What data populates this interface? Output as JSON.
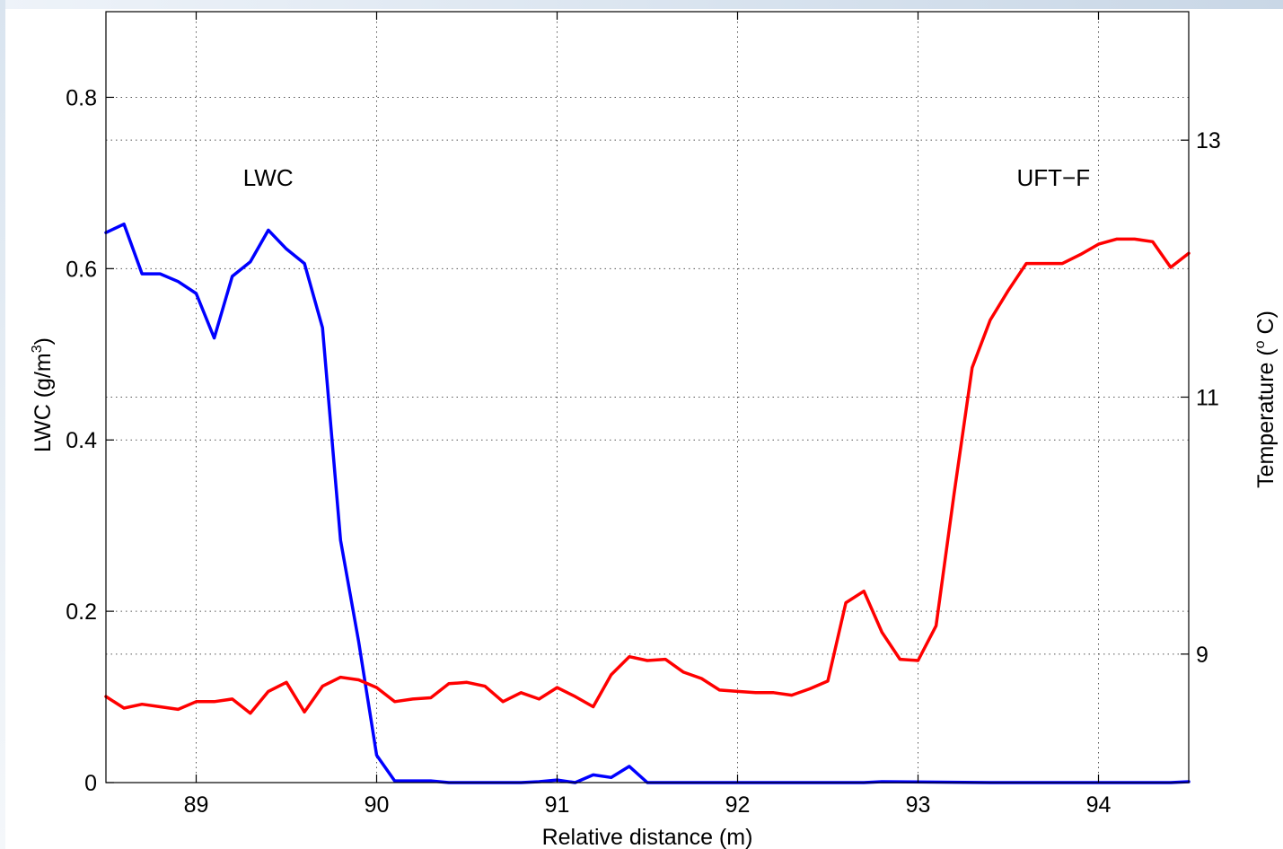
{
  "chart_data": {
    "type": "line",
    "xlabel": "Relative distance (m)",
    "ylabel": "LWC (g/m",
    "ylabel_sup": "3",
    "ylabel_tail": ")",
    "y2label": "Temperature (",
    "y2label_sup": "o",
    "y2label_tail": " C)",
    "xlim": [
      88.5,
      94.5
    ],
    "ylim": [
      0,
      0.9
    ],
    "y2lim": [
      8.0,
      14.0
    ],
    "xticks": [
      89,
      90,
      91,
      92,
      93,
      94
    ],
    "xtick_labels": [
      "89",
      "90",
      "91",
      "92",
      "93",
      "94"
    ],
    "yticks": [
      0,
      0.2,
      0.4,
      0.6,
      0.8
    ],
    "ytick_labels": [
      "0",
      "0.2",
      "0.4",
      "0.6",
      "0.8"
    ],
    "y2ticks": [
      9,
      11,
      13
    ],
    "y2tick_labels": [
      "9",
      "11",
      "13"
    ],
    "grid": true,
    "annotations": [
      {
        "text": "LWC",
        "x": 89.2,
        "y": 0.7
      },
      {
        "text": "UFT−F",
        "x": 93.8,
        "y": 0.7
      }
    ],
    "series": [
      {
        "key": "lwc",
        "color": "#0000ff",
        "axis": "left",
        "x": [
          88.5,
          88.6,
          88.7,
          88.8,
          88.9,
          89.0,
          89.1,
          89.2,
          89.3,
          89.4,
          89.5,
          89.6,
          89.7,
          89.8,
          89.9,
          90.0,
          90.1,
          90.2,
          90.3,
          90.4,
          90.7,
          90.8,
          90.9,
          91.0,
          91.1,
          91.2,
          91.3,
          91.4,
          91.5,
          91.9,
          92.1,
          92.4,
          92.7,
          92.8,
          93.4,
          93.9,
          94.1,
          94.4,
          94.5
        ],
        "y": [
          0.642,
          0.652,
          0.594,
          0.594,
          0.585,
          0.571,
          0.519,
          0.591,
          0.608,
          0.645,
          0.623,
          0.606,
          0.531,
          0.283,
          0.165,
          0.032,
          0.002,
          0.002,
          0.002,
          0.0,
          0.0,
          0.0,
          0.001,
          0.003,
          0.0,
          0.009,
          0.006,
          0.019,
          0.0,
          0.0,
          0.0,
          0.0,
          0.0,
          0.001,
          0.0,
          0.0,
          0.0,
          0.0,
          0.001
        ]
      },
      {
        "key": "temperature",
        "color": "#ff0000",
        "axis": "right",
        "x": [
          88.5,
          88.6,
          88.7,
          88.8,
          88.9,
          89.0,
          89.1,
          89.2,
          89.3,
          89.4,
          89.5,
          89.6,
          89.7,
          89.8,
          89.9,
          90.0,
          90.1,
          90.2,
          90.3,
          90.4,
          90.5,
          90.6,
          90.7,
          90.8,
          90.9,
          91.0,
          91.1,
          91.2,
          91.3,
          91.4,
          91.5,
          91.6,
          91.7,
          91.8,
          91.9,
          92.0,
          92.1,
          92.2,
          92.3,
          92.4,
          92.5,
          92.6,
          92.7,
          92.8,
          92.9,
          93.0,
          93.1,
          93.2,
          93.3,
          93.4,
          93.5,
          93.6,
          93.7,
          93.8,
          93.9,
          94.0,
          94.1,
          94.2,
          94.3,
          94.4,
          94.5
        ],
        "y": [
          8.67,
          8.58,
          8.61,
          8.59,
          8.57,
          8.63,
          8.63,
          8.65,
          8.54,
          8.71,
          8.78,
          8.55,
          8.75,
          8.82,
          8.8,
          8.74,
          8.63,
          8.65,
          8.66,
          8.77,
          8.78,
          8.75,
          8.63,
          8.7,
          8.65,
          8.74,
          8.67,
          8.59,
          8.84,
          8.98,
          8.95,
          8.96,
          8.86,
          8.81,
          8.72,
          8.71,
          8.7,
          8.7,
          8.68,
          8.73,
          8.79,
          9.4,
          9.49,
          9.17,
          8.96,
          8.95,
          9.22,
          10.25,
          11.23,
          11.6,
          11.83,
          12.04,
          12.04,
          12.04,
          12.11,
          12.19,
          12.23,
          12.23,
          12.21,
          12.01,
          12.12
        ]
      }
    ]
  }
}
